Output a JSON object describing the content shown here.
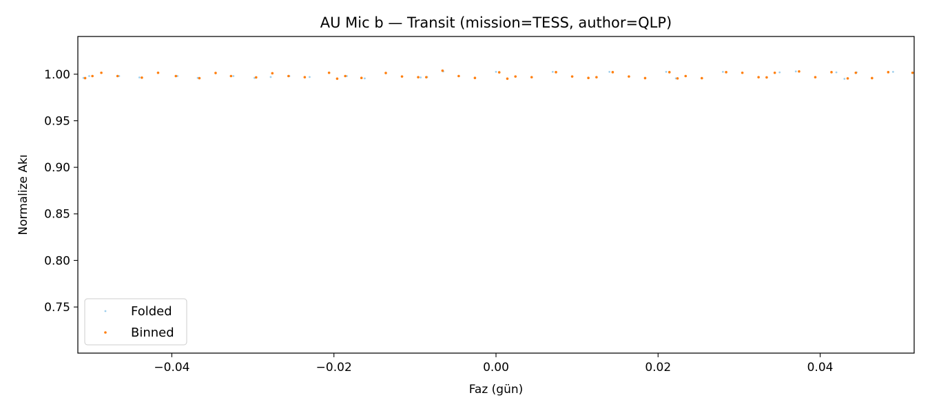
{
  "chart_data": {
    "type": "scatter",
    "title": "AU Mic b — Transit (mission=TESS, author=QLP)",
    "xlabel": "Faz (gün)",
    "ylabel": "Normalize Akı",
    "xlim": [
      -0.0516,
      0.0516
    ],
    "ylim": [
      0.7005,
      1.0405
    ],
    "x_ticks": [
      -0.04,
      -0.02,
      0.0,
      0.02,
      0.04
    ],
    "x_tick_labels": [
      "−0.04",
      "−0.02",
      "0.00",
      "0.02",
      "0.04"
    ],
    "y_ticks": [
      0.75,
      0.8,
      0.85,
      0.9,
      0.95,
      1.0
    ],
    "y_tick_labels": [
      "0.75",
      "0.80",
      "0.85",
      "0.90",
      "0.95",
      "1.00"
    ],
    "grid": false,
    "legend_position": "lower-left",
    "series": [
      {
        "name": "Folded",
        "color": "#7fbfe6",
        "x": [
          -0.0509,
          -0.0502,
          -0.0465,
          -0.044,
          -0.0393,
          -0.0368,
          -0.0324,
          -0.0298,
          -0.0278,
          -0.0255,
          -0.023,
          -0.0184,
          -0.0162,
          -0.0093,
          -0.0085,
          -0.0065,
          0.0,
          0.007,
          0.014,
          0.021,
          0.0222,
          0.028,
          0.035,
          0.037,
          0.042,
          0.043,
          0.0445,
          0.049
        ],
        "y": [
          0.996,
          0.998,
          0.998,
          0.9965,
          0.998,
          0.996,
          0.998,
          0.996,
          0.997,
          0.998,
          0.997,
          0.998,
          0.9955,
          0.9965,
          0.997,
          1.003,
          1.0025,
          1.0025,
          1.0025,
          1.0025,
          0.9955,
          1.0025,
          1.002,
          1.003,
          1.002,
          0.995,
          1.002,
          1.0025
        ]
      },
      {
        "name": "Binned",
        "color": "#ff7f0e",
        "x": [
          -0.0507,
          -0.0498,
          -0.0487,
          -0.0467,
          -0.0437,
          -0.0417,
          -0.0395,
          -0.0366,
          -0.0346,
          -0.0327,
          -0.0296,
          -0.0276,
          -0.0256,
          -0.0236,
          -0.0206,
          -0.0196,
          -0.0186,
          -0.0166,
          -0.0136,
          -0.0116,
          -0.0096,
          -0.0086,
          -0.0066,
          -0.0046,
          -0.0026,
          0.0004,
          0.0014,
          0.0024,
          0.0044,
          0.0074,
          0.0094,
          0.0114,
          0.0124,
          0.0144,
          0.0164,
          0.0184,
          0.0214,
          0.0224,
          0.0234,
          0.0254,
          0.0284,
          0.0304,
          0.0324,
          0.0334,
          0.0344,
          0.0374,
          0.0394,
          0.0414,
          0.0434,
          0.0444,
          0.0464,
          0.0484,
          0.0514
        ],
        "y": [
          0.9958,
          0.998,
          1.0015,
          0.998,
          0.9963,
          1.0015,
          0.998,
          0.9957,
          1.0013,
          0.998,
          0.9966,
          1.001,
          0.998,
          0.9968,
          1.0015,
          0.9952,
          0.998,
          0.996,
          1.0013,
          0.9975,
          0.9968,
          0.9968,
          1.0038,
          0.998,
          0.996,
          1.002,
          0.9952,
          0.9975,
          0.9968,
          1.0022,
          0.9975,
          0.996,
          0.9968,
          1.0022,
          0.9975,
          0.9958,
          1.0022,
          0.9955,
          0.998,
          0.9957,
          1.0022,
          1.0015,
          0.9968,
          0.9966,
          1.0015,
          1.003,
          0.9968,
          1.0022,
          0.9955,
          1.0015,
          0.9958,
          1.0022,
          1.0015
        ]
      }
    ]
  }
}
